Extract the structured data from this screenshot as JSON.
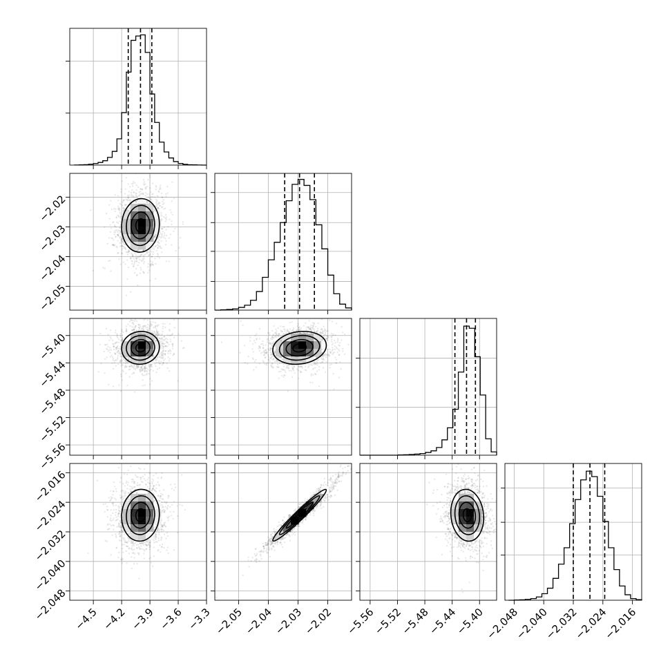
{
  "chart_data": {
    "type": "corner",
    "grid_on": true,
    "parameters": [
      {
        "range": [
          -4.75,
          -3.3
        ],
        "ticks": [
          -4.5,
          -4.2,
          -3.9,
          -3.6,
          -3.3
        ],
        "tick_labels": [
          "−4.5",
          "−4.2",
          "−3.9",
          "−3.6",
          "−3.3"
        ],
        "mean": -4.0,
        "sd": 0.1,
        "quantiles": [
          -4.13,
          -4.0,
          -3.88
        ],
        "hist_x": [
          -4.7,
          -4.65,
          -4.6,
          -4.55,
          -4.5,
          -4.45,
          -4.4,
          -4.35,
          -4.3,
          -4.25,
          -4.2,
          -4.15,
          -4.1,
          -4.05,
          -4.0,
          -3.95,
          -3.9,
          -3.85,
          -3.8,
          -3.75,
          -3.7,
          -3.65,
          -3.6,
          -3.55,
          -3.5,
          -3.45,
          -3.4,
          -3.35
        ],
        "hist_counts": [
          1,
          2,
          4,
          8,
          14,
          24,
          40,
          70,
          125,
          240,
          480,
          850,
          1140,
          1180,
          1190,
          1030,
          650,
          390,
          210,
          120,
          65,
          32,
          15,
          7,
          3,
          2,
          1,
          0
        ],
        "hist_ymax": 1250,
        "hist_grid": [
          0.38,
          0.76
        ]
      },
      {
        "range": [
          -2.058,
          -2.012
        ],
        "ticks": [
          -2.05,
          -2.04,
          -2.03,
          -2.02
        ],
        "tick_labels": [
          "−2.05",
          "−2.04",
          "−2.03",
          "−2.02"
        ],
        "mean": -2.0295,
        "sd": 0.0045,
        "quantiles": [
          -2.0345,
          -2.0295,
          -2.0245
        ],
        "hist_x": [
          -2.058,
          -2.056,
          -2.054,
          -2.052,
          -2.05,
          -2.048,
          -2.046,
          -2.044,
          -2.042,
          -2.04,
          -2.038,
          -2.036,
          -2.034,
          -2.032,
          -2.03,
          -2.028,
          -2.026,
          -2.024,
          -2.022,
          -2.02,
          -2.018,
          -2.016,
          -2.014
        ],
        "hist_counts": [
          0,
          3,
          6,
          12,
          25,
          45,
          90,
          170,
          300,
          460,
          620,
          800,
          1000,
          1150,
          1195,
          1140,
          1010,
          780,
          560,
          320,
          150,
          55,
          20
        ],
        "hist_ymax": 1250,
        "hist_grid": [
          0.21,
          0.43,
          0.64,
          0.86
        ]
      },
      {
        "range": [
          -5.575,
          -5.375
        ],
        "ticks": [
          -5.56,
          -5.52,
          -5.48,
          -5.44,
          -5.4
        ],
        "tick_labels": [
          "−5.56",
          "−5.52",
          "−5.48",
          "−5.44",
          "−5.40"
        ],
        "mean": -5.418,
        "sd": 0.012,
        "quantiles": [
          -5.436,
          -5.419,
          -5.406
        ],
        "hist_x": [
          -5.575,
          -5.567,
          -5.559,
          -5.551,
          -5.543,
          -5.535,
          -5.527,
          -5.519,
          -5.511,
          -5.503,
          -5.495,
          -5.487,
          -5.479,
          -5.471,
          -5.463,
          -5.455,
          -5.447,
          -5.439,
          -5.431,
          -5.423,
          -5.415,
          -5.407,
          -5.399,
          -5.391,
          -5.383
        ],
        "hist_counts": [
          0,
          0,
          0,
          0,
          0,
          0,
          0,
          2,
          4,
          6,
          10,
          15,
          25,
          40,
          70,
          140,
          250,
          420,
          760,
          1180,
          1160,
          900,
          550,
          150,
          30
        ],
        "hist_ymax": 1250,
        "hist_grid": [
          0.35,
          0.71
        ]
      },
      {
        "range": [
          -2.0505,
          -2.0135
        ],
        "ticks": [
          -2.048,
          -2.04,
          -2.032,
          -2.024,
          -2.016
        ],
        "tick_labels": [
          "−2.048",
          "−2.040",
          "−2.032",
          "−2.024",
          "−2.016"
        ],
        "mean": -2.0275,
        "sd": 0.0035,
        "quantiles": [
          -2.032,
          -2.0275,
          -2.0235
        ],
        "hist_x": [
          -2.0495,
          -2.048,
          -2.0465,
          -2.045,
          -2.0435,
          -2.042,
          -2.0405,
          -2.039,
          -2.0375,
          -2.036,
          -2.0345,
          -2.033,
          -2.0315,
          -2.03,
          -2.0285,
          -2.027,
          -2.0255,
          -2.024,
          -2.0225,
          -2.021,
          -2.0195,
          -2.018,
          -2.0165,
          -2.015
        ],
        "hist_counts": [
          0,
          2,
          4,
          8,
          15,
          30,
          60,
          110,
          200,
          330,
          480,
          700,
          920,
          1100,
          1180,
          1130,
          950,
          720,
          480,
          280,
          130,
          50,
          15,
          5
        ],
        "hist_ymax": 1250,
        "hist_grid": [
          0.33,
          0.57,
          0.82
        ]
      }
    ],
    "pairs": [
      {
        "row": 1,
        "col": 0,
        "rho": 0.05,
        "cx": -4.0,
        "cy": -2.0295
      },
      {
        "row": 2,
        "col": 0,
        "rho": 0.05,
        "cx": -4.0,
        "cy": -5.418
      },
      {
        "row": 2,
        "col": 1,
        "rho": 0.15,
        "cx": -2.0295,
        "cy": -5.418
      },
      {
        "row": 3,
        "col": 0,
        "rho": 0.05,
        "cx": -4.0,
        "cy": -2.0275
      },
      {
        "row": 3,
        "col": 1,
        "rho": 0.97,
        "cx": -2.0295,
        "cy": -2.0275
      },
      {
        "row": 3,
        "col": 2,
        "rho": -0.1,
        "cx": -5.418,
        "cy": -2.0275
      }
    ],
    "contour_levels": [
      0.5,
      1.0,
      1.5,
      2.0
    ]
  }
}
